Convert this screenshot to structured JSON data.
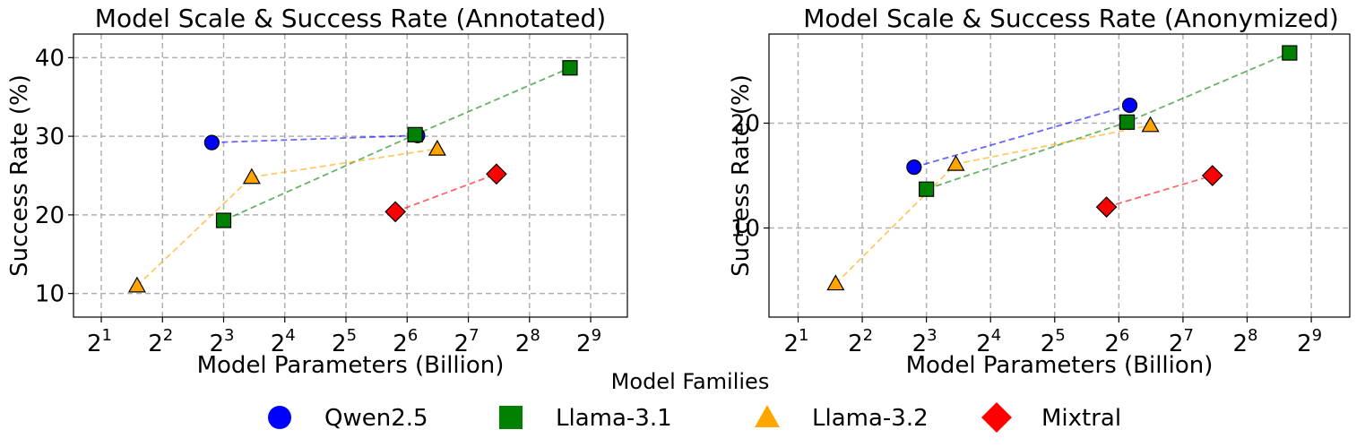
{
  "chart_data": [
    {
      "type": "scatter",
      "title": "Model Scale & Success Rate (Annotated)",
      "xlabel": "Model Parameters (Billion)",
      "ylabel": "Success Rate (%)",
      "xscale": "log2",
      "x_tick_exponents": [
        1,
        2,
        3,
        4,
        5,
        6,
        7,
        8,
        9
      ],
      "xlim": [
        1.46,
        776
      ],
      "ylim": [
        7,
        43
      ],
      "yticks": [
        10,
        20,
        30,
        40
      ],
      "grid": true,
      "series": [
        {
          "name": "Qwen2.5",
          "color": "#0000ff",
          "marker": "circle",
          "points": [
            {
              "x": 7,
              "y": 29.2
            },
            {
              "x": 72,
              "y": 30.1
            }
          ]
        },
        {
          "name": "Llama-3.1",
          "color": "#008000",
          "marker": "square",
          "points": [
            {
              "x": 8,
              "y": 19.3
            },
            {
              "x": 70,
              "y": 30.2
            },
            {
              "x": 405,
              "y": 38.7
            }
          ]
        },
        {
          "name": "Llama-3.2",
          "color": "#ffa500",
          "marker": "triangle",
          "points": [
            {
              "x": 3,
              "y": 11.0
            },
            {
              "x": 11,
              "y": 24.8
            },
            {
              "x": 90,
              "y": 28.4
            }
          ]
        },
        {
          "name": "Mixtral",
          "color": "#ff0000",
          "marker": "diamond",
          "points": [
            {
              "x": 56,
              "y": 20.4
            },
            {
              "x": 176,
              "y": 25.2
            }
          ]
        }
      ]
    },
    {
      "type": "scatter",
      "title": "Model Scale & Success Rate (Anonymized)",
      "xlabel": "Model Parameters (Billion)",
      "ylabel": "Success Rate (%)",
      "xscale": "log2",
      "x_tick_exponents": [
        1,
        2,
        3,
        4,
        5,
        6,
        7,
        8,
        9
      ],
      "xlim": [
        1.46,
        776
      ],
      "ylim": [
        1.5,
        28.5
      ],
      "yticks": [
        10,
        20
      ],
      "grid": true,
      "series": [
        {
          "name": "Qwen2.5",
          "color": "#0000ff",
          "marker": "circle",
          "points": [
            {
              "x": 7,
              "y": 15.8
            },
            {
              "x": 72,
              "y": 21.7
            }
          ]
        },
        {
          "name": "Llama-3.1",
          "color": "#008000",
          "marker": "square",
          "points": [
            {
              "x": 8,
              "y": 13.7
            },
            {
              "x": 70,
              "y": 20.1
            },
            {
              "x": 405,
              "y": 26.7
            }
          ]
        },
        {
          "name": "Llama-3.2",
          "color": "#ffa500",
          "marker": "triangle",
          "points": [
            {
              "x": 3,
              "y": 4.7
            },
            {
              "x": 11,
              "y": 16.1
            },
            {
              "x": 90,
              "y": 19.8
            }
          ]
        },
        {
          "name": "Mixtral",
          "color": "#ff0000",
          "marker": "diamond",
          "points": [
            {
              "x": 56,
              "y": 12.0
            },
            {
              "x": 176,
              "y": 15.0
            }
          ]
        }
      ]
    }
  ],
  "legend": {
    "title": "Model Families",
    "placement": "bottom-center",
    "entries": [
      {
        "label": "Qwen2.5",
        "color": "#0000ff",
        "marker": "circle"
      },
      {
        "label": "Llama-3.1",
        "color": "#008000",
        "marker": "square"
      },
      {
        "label": "Llama-3.2",
        "color": "#ffa500",
        "marker": "triangle"
      },
      {
        "label": "Mixtral",
        "color": "#ff0000",
        "marker": "diamond"
      }
    ]
  }
}
